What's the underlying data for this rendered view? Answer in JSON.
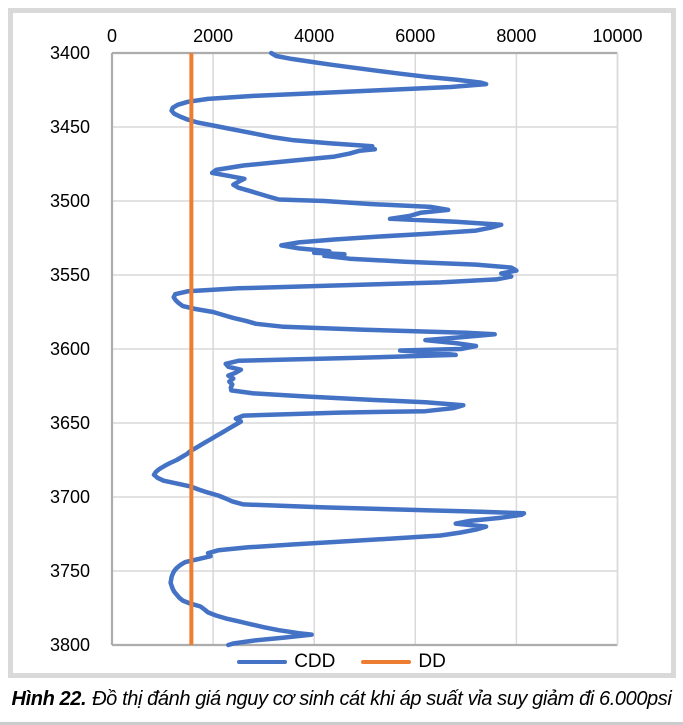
{
  "figure": {
    "caption_label": "Hình 22.",
    "caption_text": "Đồ thị đánh giá nguy cơ sinh cát khi áp suất vỉa suy giảm đi 6.000psi"
  },
  "legend": {
    "position": "bottom-center",
    "items": [
      "CDD",
      "DD"
    ]
  },
  "chart_data": {
    "type": "line",
    "orientation": "depth-profile (depth on vertical axis increasing downward, pressure on top horizontal axis)",
    "title": "",
    "xlabel": "",
    "ylabel": "",
    "grid": true,
    "x_axis": {
      "position": "top",
      "min": 0,
      "max": 10000,
      "tick_interval": 2000,
      "ticks": [
        0,
        2000,
        4000,
        6000,
        8000,
        10000
      ]
    },
    "y_axis": {
      "position": "left",
      "min": 3400,
      "max": 3800,
      "tick_interval": 50,
      "increases_downward": true,
      "ticks": [
        3400,
        3450,
        3500,
        3550,
        3600,
        3650,
        3700,
        3750,
        3800
      ]
    },
    "colors": {
      "cdd_line": "#4472C4",
      "dd_line": "#ED7D31",
      "gridline": "#D9D9D9",
      "axis_line": "#ACACAC",
      "frame_border": "#D9D9D9",
      "text": "#000000"
    },
    "series": [
      {
        "name": "CDD",
        "color": "#4472C4",
        "points_format": "[depth, pressure_psi]",
        "points": [
          [
            3400,
            3150
          ],
          [
            3402,
            3250
          ],
          [
            3404,
            3550
          ],
          [
            3406,
            3950
          ],
          [
            3408,
            4350
          ],
          [
            3410,
            4800
          ],
          [
            3412,
            5250
          ],
          [
            3414,
            5700
          ],
          [
            3416,
            6200
          ],
          [
            3418,
            6800
          ],
          [
            3420,
            7300
          ],
          [
            3421,
            7400
          ],
          [
            3423,
            6700
          ],
          [
            3425,
            5400
          ],
          [
            3427,
            4100
          ],
          [
            3429,
            2800
          ],
          [
            3431,
            1900
          ],
          [
            3433,
            1500
          ],
          [
            3435,
            1300
          ],
          [
            3437,
            1200
          ],
          [
            3439,
            1180
          ],
          [
            3441,
            1230
          ],
          [
            3443,
            1350
          ],
          [
            3445,
            1500
          ],
          [
            3447,
            1700
          ],
          [
            3449,
            2000
          ],
          [
            3451,
            2300
          ],
          [
            3453,
            2600
          ],
          [
            3455,
            2900
          ],
          [
            3457,
            3200
          ],
          [
            3459,
            3600
          ],
          [
            3461,
            4300
          ],
          [
            3463,
            5150
          ],
          [
            3464,
            5000
          ],
          [
            3465,
            5200
          ],
          [
            3466,
            4900
          ],
          [
            3468,
            4700
          ],
          [
            3470,
            4400
          ],
          [
            3473,
            3500
          ],
          [
            3476,
            2600
          ],
          [
            3479,
            2060
          ],
          [
            3481,
            1980
          ],
          [
            3483,
            2300
          ],
          [
            3485,
            2620
          ],
          [
            3487,
            2500
          ],
          [
            3489,
            2400
          ],
          [
            3491,
            2500
          ],
          [
            3493,
            2700
          ],
          [
            3495,
            2900
          ],
          [
            3497,
            3100
          ],
          [
            3499,
            3300
          ],
          [
            3500,
            4200
          ],
          [
            3502,
            5100
          ],
          [
            3504,
            6300
          ],
          [
            3506,
            6650
          ],
          [
            3508,
            6100
          ],
          [
            3510,
            5900
          ],
          [
            3512,
            5500
          ],
          [
            3514,
            6800
          ],
          [
            3516,
            7700
          ],
          [
            3518,
            7500
          ],
          [
            3520,
            7200
          ],
          [
            3522,
            6300
          ],
          [
            3524,
            5300
          ],
          [
            3526,
            4400
          ],
          [
            3528,
            3700
          ],
          [
            3530,
            3350
          ],
          [
            3532,
            3700
          ],
          [
            3534,
            4300
          ],
          [
            3535,
            4000
          ],
          [
            3536,
            4600
          ],
          [
            3537,
            4200
          ],
          [
            3539,
            4700
          ],
          [
            3541,
            5800
          ],
          [
            3543,
            7200
          ],
          [
            3545,
            7900
          ],
          [
            3547,
            8000
          ],
          [
            3549,
            7700
          ],
          [
            3551,
            7900
          ],
          [
            3553,
            7600
          ],
          [
            3555,
            6500
          ],
          [
            3557,
            4500
          ],
          [
            3559,
            2500
          ],
          [
            3561,
            1500
          ],
          [
            3563,
            1250
          ],
          [
            3565,
            1220
          ],
          [
            3567,
            1260
          ],
          [
            3569,
            1320
          ],
          [
            3571,
            1400
          ],
          [
            3573,
            1650
          ],
          [
            3575,
            2000
          ],
          [
            3577,
            2200
          ],
          [
            3579,
            2400
          ],
          [
            3581,
            2650
          ],
          [
            3583,
            2850
          ],
          [
            3585,
            3400
          ],
          [
            3587,
            5000
          ],
          [
            3589,
            7000
          ],
          [
            3590,
            7570
          ],
          [
            3592,
            6900
          ],
          [
            3594,
            6200
          ],
          [
            3596,
            6800
          ],
          [
            3598,
            7200
          ],
          [
            3600,
            6900
          ],
          [
            3601,
            5700
          ],
          [
            3603,
            6500
          ],
          [
            3604,
            6800
          ],
          [
            3606,
            4800
          ],
          [
            3608,
            2500
          ],
          [
            3610,
            2250
          ],
          [
            3612,
            2300
          ],
          [
            3614,
            2550
          ],
          [
            3616,
            2450
          ],
          [
            3618,
            2300
          ],
          [
            3620,
            2400
          ],
          [
            3622,
            2320
          ],
          [
            3624,
            2380
          ],
          [
            3626,
            2350
          ],
          [
            3628,
            2360
          ],
          [
            3630,
            2800
          ],
          [
            3632,
            3800
          ],
          [
            3634,
            4900
          ],
          [
            3636,
            6200
          ],
          [
            3638,
            6950
          ],
          [
            3640,
            6750
          ],
          [
            3642,
            6200
          ],
          [
            3643,
            4500
          ],
          [
            3645,
            2600
          ],
          [
            3647,
            2450
          ],
          [
            3649,
            2550
          ],
          [
            3651,
            2450
          ],
          [
            3653,
            2350
          ],
          [
            3655,
            2250
          ],
          [
            3657,
            2150
          ],
          [
            3659,
            2050
          ],
          [
            3661,
            1950
          ],
          [
            3663,
            1850
          ],
          [
            3665,
            1750
          ],
          [
            3667,
            1650
          ],
          [
            3669,
            1550
          ],
          [
            3671,
            1480
          ],
          [
            3673,
            1380
          ],
          [
            3675,
            1280
          ],
          [
            3677,
            1150
          ],
          [
            3679,
            1040
          ],
          [
            3681,
            940
          ],
          [
            3683,
            870
          ],
          [
            3685,
            830
          ],
          [
            3687,
            900
          ],
          [
            3689,
            1020
          ],
          [
            3691,
            1300
          ],
          [
            3693,
            1560
          ],
          [
            3695,
            1720
          ],
          [
            3697,
            1900
          ],
          [
            3699,
            2100
          ],
          [
            3701,
            2250
          ],
          [
            3703,
            2380
          ],
          [
            3705,
            2600
          ],
          [
            3707,
            4200
          ],
          [
            3709,
            6200
          ],
          [
            3710,
            7300
          ],
          [
            3711,
            8150
          ],
          [
            3712,
            8100
          ],
          [
            3714,
            7700
          ],
          [
            3716,
            7100
          ],
          [
            3718,
            6800
          ],
          [
            3720,
            7400
          ],
          [
            3722,
            7200
          ],
          [
            3724,
            6900
          ],
          [
            3726,
            6500
          ],
          [
            3728,
            5600
          ],
          [
            3730,
            4600
          ],
          [
            3732,
            3600
          ],
          [
            3734,
            2700
          ],
          [
            3736,
            2100
          ],
          [
            3738,
            1900
          ],
          [
            3740,
            1950
          ],
          [
            3742,
            1700
          ],
          [
            3744,
            1450
          ],
          [
            3746,
            1350
          ],
          [
            3748,
            1280
          ],
          [
            3750,
            1230
          ],
          [
            3752,
            1200
          ],
          [
            3754,
            1180
          ],
          [
            3756,
            1170
          ],
          [
            3758,
            1160
          ],
          [
            3760,
            1180
          ],
          [
            3762,
            1200
          ],
          [
            3764,
            1230
          ],
          [
            3766,
            1280
          ],
          [
            3768,
            1330
          ],
          [
            3770,
            1400
          ],
          [
            3772,
            1550
          ],
          [
            3774,
            1750
          ],
          [
            3776,
            1830
          ],
          [
            3778,
            1900
          ],
          [
            3780,
            2050
          ],
          [
            3782,
            2250
          ],
          [
            3784,
            2500
          ],
          [
            3786,
            2750
          ],
          [
            3788,
            3000
          ],
          [
            3790,
            3300
          ],
          [
            3792,
            3700
          ],
          [
            3793,
            3950
          ],
          [
            3795,
            3400
          ],
          [
            3797,
            2800
          ],
          [
            3799,
            2400
          ],
          [
            3800,
            2300
          ]
        ]
      },
      {
        "name": "DD",
        "color": "#ED7D31",
        "type": "constant-vertical-line",
        "constant_value": 1570,
        "depth_range": [
          3400,
          3800
        ]
      }
    ]
  }
}
